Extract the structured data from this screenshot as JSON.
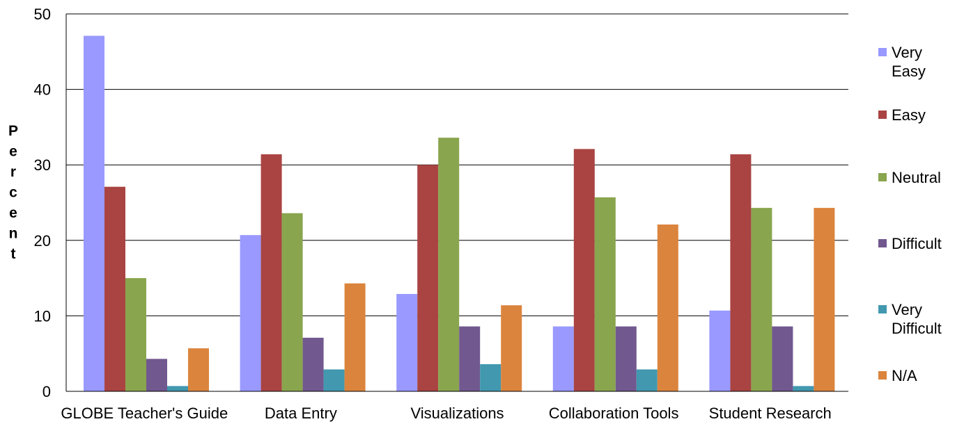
{
  "chart_data": {
    "type": "bar",
    "title": "",
    "xlabel": "",
    "ylabel": "Percent",
    "ylim": [
      0,
      50
    ],
    "yticks": [
      0,
      10,
      20,
      30,
      40,
      50
    ],
    "grid": true,
    "legend_position": "right",
    "categories": [
      "GLOBE Teacher's Guide",
      "Data Entry",
      "Visualizations",
      "Collaboration Tools",
      "Student Research"
    ],
    "series": [
      {
        "name": "Very Easy",
        "name_lines": [
          "Very",
          "Easy"
        ],
        "color": "#9999ff",
        "values": [
          47.1,
          20.7,
          12.9,
          8.6,
          10.7
        ]
      },
      {
        "name": "Easy",
        "name_lines": [
          "Easy"
        ],
        "color": "#a94442",
        "values": [
          27.1,
          31.4,
          30.0,
          32.1,
          31.4
        ]
      },
      {
        "name": "Neutral",
        "name_lines": [
          "Neutral"
        ],
        "color": "#89a54e",
        "values": [
          15.0,
          23.6,
          33.6,
          25.7,
          24.3
        ]
      },
      {
        "name": "Difficult",
        "name_lines": [
          "Difficult"
        ],
        "color": "#71588f",
        "values": [
          4.3,
          7.1,
          8.6,
          8.6,
          8.6
        ]
      },
      {
        "name": "Very Difficult",
        "name_lines": [
          "Very",
          "Difficult"
        ],
        "color": "#4198af",
        "values": [
          0.7,
          2.9,
          3.6,
          2.9,
          0.7
        ]
      },
      {
        "name": "N/A",
        "name_lines": [
          "N/A"
        ],
        "color": "#db843d",
        "values": [
          5.7,
          14.3,
          11.4,
          22.1,
          24.3
        ]
      }
    ]
  }
}
